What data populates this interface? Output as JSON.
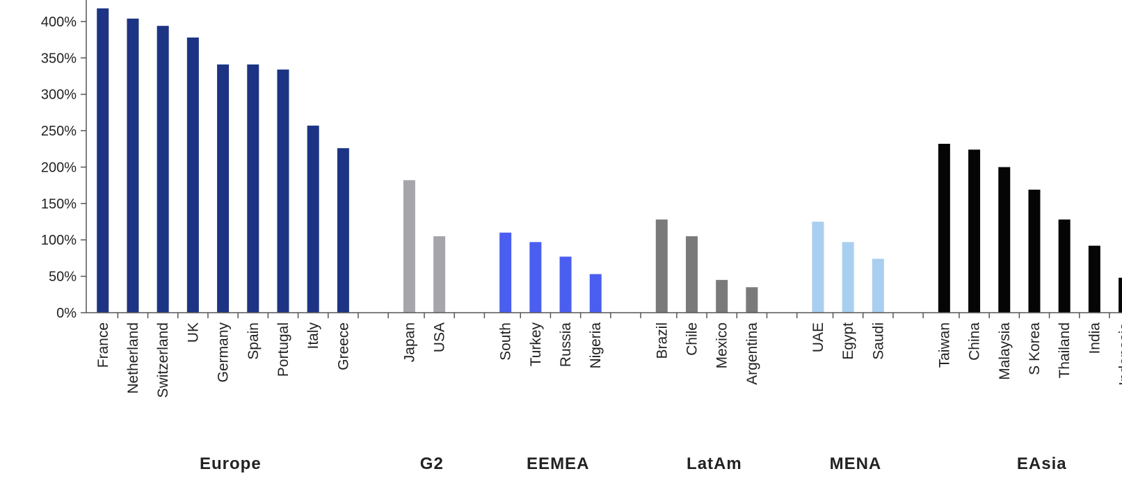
{
  "chart_data": {
    "type": "bar",
    "title": "",
    "xlabel": "",
    "ylabel": "",
    "ylim": [
      0,
      420
    ],
    "yticks": [
      "0%",
      "50%",
      "100%",
      "150%",
      "200%",
      "250%",
      "300%",
      "350%",
      "400%"
    ],
    "grid": false,
    "legend": "none",
    "groups": [
      {
        "name": "Europe",
        "color": "#1c3483",
        "categories": [
          "France",
          "Netherland",
          "Switzerland",
          "UK",
          "Germany",
          "Spain",
          "Portugal",
          "Italy",
          "Greece"
        ],
        "values": [
          418,
          404,
          394,
          378,
          341,
          341,
          334,
          257,
          226
        ]
      },
      {
        "name": "G2",
        "color": "#a6a6aa",
        "categories": [
          "Japan",
          "USA"
        ],
        "values": [
          182,
          105
        ]
      },
      {
        "name": "EEMEA",
        "color": "#4a5ef0",
        "categories": [
          "South",
          "Turkey",
          "Russia",
          "Nigeria"
        ],
        "values": [
          110,
          97,
          77,
          53
        ]
      },
      {
        "name": "LatAm",
        "color": "#7a7a7a",
        "categories": [
          "Brazil",
          "Chile",
          "Mexico",
          "Argentina"
        ],
        "values": [
          128,
          105,
          45,
          35
        ]
      },
      {
        "name": "MENA",
        "color": "#a8cff0",
        "categories": [
          "UAE",
          "Egypt",
          "Saudi"
        ],
        "values": [
          125,
          97,
          74
        ]
      },
      {
        "name": "EAsia",
        "color": "#050505",
        "categories": [
          "Taiwan",
          "China",
          "Malaysia",
          "S Korea",
          "Thailand",
          "India",
          "Indonesia"
        ],
        "values": [
          232,
          224,
          200,
          169,
          128,
          92,
          48
        ]
      }
    ]
  }
}
